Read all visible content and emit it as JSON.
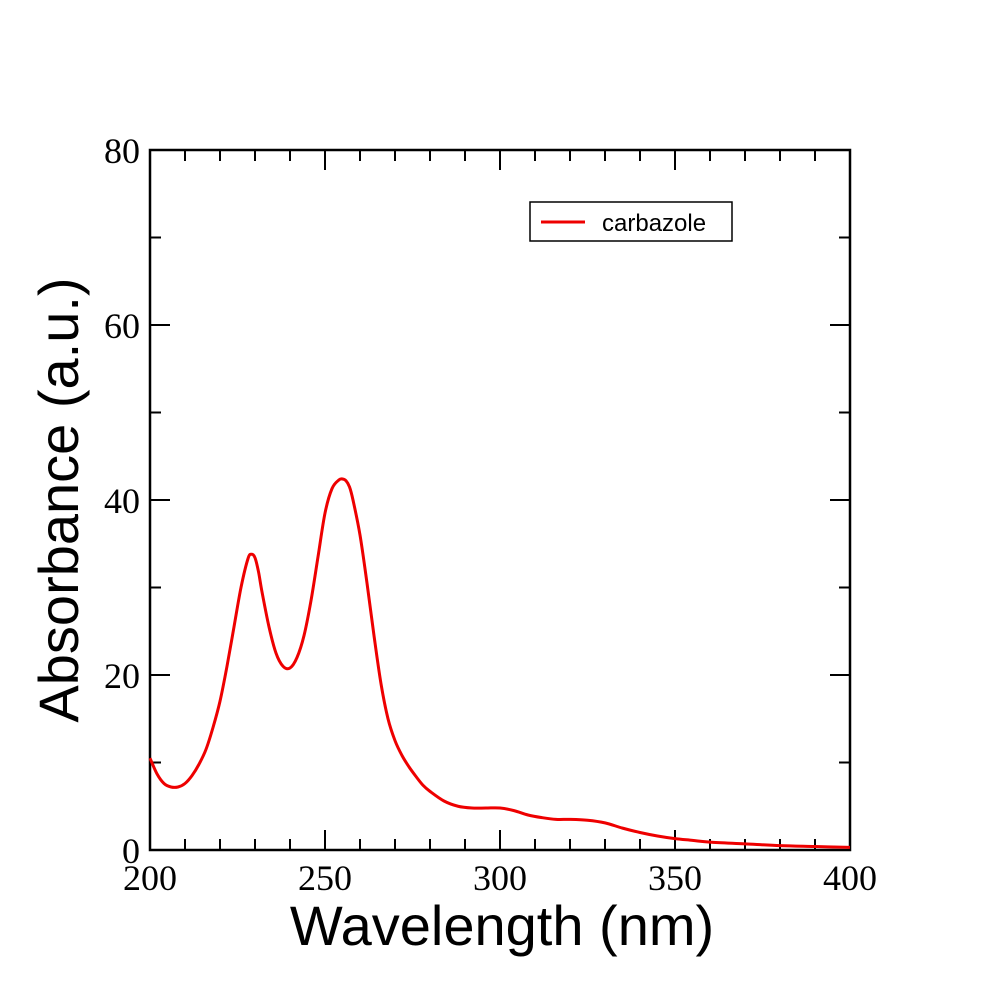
{
  "chart_data": {
    "type": "line",
    "xlabel": "Wavelength (nm)",
    "ylabel": "Absorbance (a.u.)",
    "xlim": [
      200,
      400
    ],
    "ylim": [
      0,
      80
    ],
    "x_ticks": [
      200,
      250,
      300,
      350,
      400
    ],
    "y_ticks": [
      0,
      20,
      40,
      60,
      80
    ],
    "x_minor_step": 10,
    "y_minor_step": 10,
    "grid": false,
    "legend_position": "top-right",
    "series": [
      {
        "name": "carbazole",
        "color": "#ee0000",
        "x": [
          200,
          202,
          204,
          206,
          208,
          210,
          212,
          214,
          216,
          218,
          220,
          222,
          224,
          226,
          228,
          229,
          230,
          231,
          232,
          234,
          236,
          238,
          240,
          242,
          244,
          246,
          248,
          250,
          252,
          254,
          255,
          256,
          257,
          258,
          260,
          262,
          264,
          266,
          268,
          270,
          272,
          274,
          276,
          278,
          280,
          284,
          288,
          292,
          296,
          300,
          304,
          308,
          312,
          316,
          320,
          325,
          330,
          335,
          340,
          345,
          350,
          355,
          360,
          370,
          380,
          390,
          400
        ],
        "y": [
          10.5,
          8.7,
          7.6,
          7.2,
          7.2,
          7.6,
          8.5,
          9.8,
          11.5,
          14,
          17,
          21,
          25.5,
          30,
          33.3,
          33.8,
          33.4,
          31.8,
          29.5,
          25.5,
          22.5,
          21,
          20.8,
          22,
          24.5,
          28.5,
          33.5,
          38.5,
          41.3,
          42.3,
          42.4,
          42.2,
          41.5,
          40,
          36,
          30.5,
          24.5,
          19,
          15,
          12.5,
          10.8,
          9.5,
          8.4,
          7.4,
          6.7,
          5.6,
          5,
          4.8,
          4.8,
          4.8,
          4.5,
          4,
          3.7,
          3.5,
          3.5,
          3.4,
          3.1,
          2.5,
          2,
          1.6,
          1.3,
          1.1,
          0.9,
          0.7,
          0.5,
          0.4,
          0.3
        ]
      }
    ]
  }
}
